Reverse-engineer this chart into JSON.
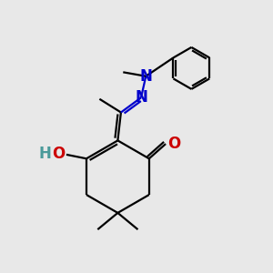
{
  "bg_color": "#e8e8e8",
  "bond_color": "#000000",
  "n_color": "#0000cc",
  "o_color": "#cc0000",
  "h_color": "#4a9a9a",
  "line_width": 1.6,
  "fig_w": 3.0,
  "fig_h": 3.0,
  "dpi": 100,
  "xlim": [
    0,
    10
  ],
  "ylim": [
    0,
    10
  ]
}
